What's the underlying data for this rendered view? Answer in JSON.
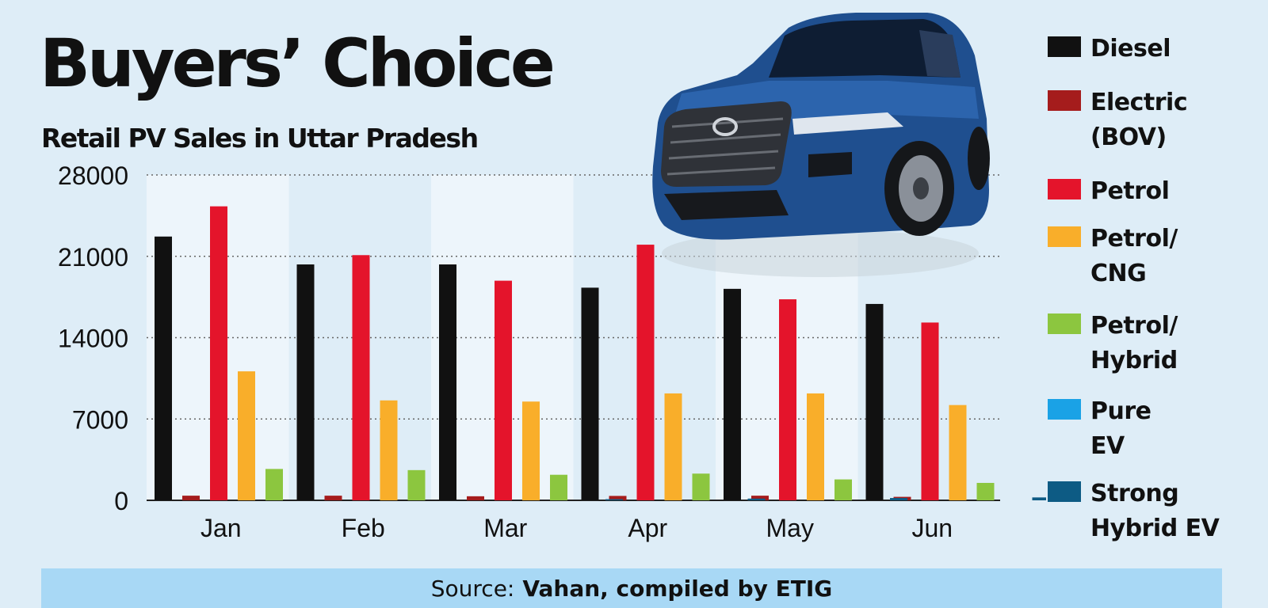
{
  "title": "Buyers’ Choice",
  "subtitle": "Retail PV Sales in Uttar Pradesh",
  "source": {
    "prefix": "Source:",
    "text": "Vahan, compiled by ETIG"
  },
  "colors": {
    "background": "#deedf7",
    "column_band": "#edf5fb",
    "Diesel": "#111111",
    "Electric (BOV)": "#a51c1c",
    "Petrol": "#e4142b",
    "Petrol/CNG": "#f9ae2a",
    "Petrol/Hybrid": "#8cc63f",
    "Pure EV": "#1aa2e6",
    "Strong Hybrid EV": "#0d5b84",
    "source_bar": "#a8d8f5"
  },
  "legend": [
    {
      "series": "Diesel",
      "label_lines": [
        "Diesel"
      ]
    },
    {
      "series": "Electric (BOV)",
      "label_lines": [
        "Electric",
        "(BOV)"
      ]
    },
    {
      "series": "Petrol",
      "label_lines": [
        "Petrol"
      ]
    },
    {
      "series": "Petrol/CNG",
      "label_lines": [
        "Petrol/",
        "CNG"
      ]
    },
    {
      "series": "Petrol/Hybrid",
      "label_lines": [
        "Petrol/",
        "Hybrid"
      ]
    },
    {
      "series": "Pure EV",
      "label_lines": [
        "Pure",
        "EV"
      ]
    },
    {
      "series": "Strong Hybrid EV",
      "label_lines": [
        "Strong",
        "Hybrid EV"
      ]
    }
  ],
  "chart_data": {
    "type": "bar",
    "categories": [
      "Jan",
      "Feb",
      "Mar",
      "Apr",
      "May",
      "Jun"
    ],
    "ylim": [
      0,
      28000
    ],
    "yticks": [
      "0",
      "7000",
      "14000",
      "21000",
      "28000"
    ],
    "grid": true,
    "legend_position": "right",
    "series": [
      {
        "name": "Diesel",
        "values": [
          22700,
          20300,
          20300,
          18300,
          18200,
          16900
        ]
      },
      {
        "name": "Electric (BOV)",
        "values": [
          400,
          400,
          350,
          380,
          400,
          300
        ]
      },
      {
        "name": "Petrol",
        "values": [
          25300,
          21100,
          18900,
          22000,
          17300,
          15300
        ]
      },
      {
        "name": "Petrol/CNG",
        "values": [
          11100,
          8600,
          8500,
          9200,
          9200,
          8200
        ]
      },
      {
        "name": "Petrol/Hybrid",
        "values": [
          2700,
          2600,
          2200,
          2300,
          1800,
          1500
        ]
      },
      {
        "name": "Pure EV",
        "values": [
          0,
          0,
          0,
          0,
          0,
          0
        ]
      },
      {
        "name": "Strong Hybrid EV",
        "values": [
          0,
          0,
          100,
          150,
          200,
          250
        ]
      }
    ]
  }
}
